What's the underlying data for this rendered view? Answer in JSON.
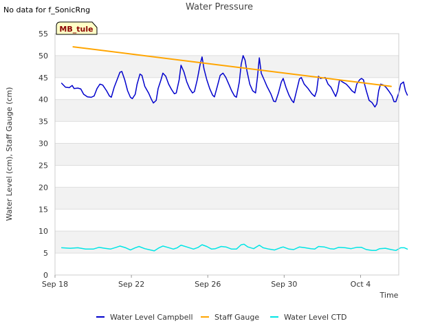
{
  "status_text": "No data for f_SonicRng",
  "site_label": "MB_tule",
  "chart_data": {
    "type": "line",
    "title": "Water Pressure",
    "xlabel": "Time",
    "ylabel": "Water Level (cm), Staff Gauge (cm)",
    "x_range": [
      "2023-09-18",
      "2023-10-06"
    ],
    "ylim": [
      0,
      55
    ],
    "y_ticks": [
      0,
      5,
      10,
      15,
      20,
      25,
      30,
      35,
      40,
      45,
      50,
      55
    ],
    "x_ticks": [
      {
        "label": "Sep 18",
        "day": 0
      },
      {
        "label": "Sep 22",
        "day": 4
      },
      {
        "label": "Sep 26",
        "day": 8
      },
      {
        "label": "Sep 30",
        "day": 12
      },
      {
        "label": "Oct 4",
        "day": 16
      }
    ],
    "grid": "horizontal alternating bands",
    "legend_position": "bottom",
    "series": [
      {
        "name": "Water Level Campbell",
        "color": "#0000cc",
        "points": [
          [
            0.35,
            43.7
          ],
          [
            0.55,
            42.8
          ],
          [
            0.75,
            42.7
          ],
          [
            0.9,
            43.2
          ],
          [
            1.0,
            42.5
          ],
          [
            1.2,
            42.6
          ],
          [
            1.35,
            42.4
          ],
          [
            1.5,
            41.2
          ],
          [
            1.7,
            40.6
          ],
          [
            1.9,
            40.5
          ],
          [
            2.05,
            40.8
          ],
          [
            2.2,
            42.5
          ],
          [
            2.35,
            43.5
          ],
          [
            2.5,
            43.3
          ],
          [
            2.7,
            42.0
          ],
          [
            2.85,
            40.8
          ],
          [
            2.95,
            40.5
          ],
          [
            3.1,
            42.8
          ],
          [
            3.25,
            44.5
          ],
          [
            3.4,
            46.2
          ],
          [
            3.5,
            46.4
          ],
          [
            3.65,
            44.5
          ],
          [
            3.8,
            42.0
          ],
          [
            3.95,
            40.5
          ],
          [
            4.05,
            40.2
          ],
          [
            4.2,
            41.2
          ],
          [
            4.3,
            43.5
          ],
          [
            4.45,
            45.8
          ],
          [
            4.55,
            45.5
          ],
          [
            4.7,
            43.0
          ],
          [
            4.9,
            41.5
          ],
          [
            5.05,
            40.0
          ],
          [
            5.15,
            39.2
          ],
          [
            5.3,
            39.8
          ],
          [
            5.4,
            42.5
          ],
          [
            5.55,
            44.5
          ],
          [
            5.65,
            46.0
          ],
          [
            5.8,
            45.3
          ],
          [
            5.95,
            43.5
          ],
          [
            6.1,
            42.3
          ],
          [
            6.25,
            41.3
          ],
          [
            6.35,
            41.5
          ],
          [
            6.5,
            44.5
          ],
          [
            6.6,
            47.8
          ],
          [
            6.75,
            46.3
          ],
          [
            6.9,
            44.0
          ],
          [
            7.05,
            42.5
          ],
          [
            7.2,
            41.5
          ],
          [
            7.3,
            41.8
          ],
          [
            7.45,
            44.5
          ],
          [
            7.6,
            48.0
          ],
          [
            7.7,
            49.7
          ],
          [
            7.8,
            47.0
          ],
          [
            7.95,
            44.5
          ],
          [
            8.1,
            42.5
          ],
          [
            8.25,
            41.0
          ],
          [
            8.35,
            40.6
          ],
          [
            8.5,
            43.0
          ],
          [
            8.65,
            45.5
          ],
          [
            8.8,
            46.0
          ],
          [
            8.95,
            45.0
          ],
          [
            9.1,
            43.5
          ],
          [
            9.25,
            42.0
          ],
          [
            9.4,
            40.8
          ],
          [
            9.5,
            40.5
          ],
          [
            9.65,
            44.0
          ],
          [
            9.75,
            48.0
          ],
          [
            9.85,
            50.0
          ],
          [
            9.95,
            49.0
          ],
          [
            10.05,
            46.5
          ],
          [
            10.2,
            43.5
          ],
          [
            10.35,
            42.0
          ],
          [
            10.5,
            41.5
          ],
          [
            10.6,
            45.0
          ],
          [
            10.7,
            49.5
          ],
          [
            10.8,
            46.0
          ],
          [
            10.95,
            44.5
          ],
          [
            11.1,
            43.0
          ],
          [
            11.3,
            41.3
          ],
          [
            11.45,
            39.6
          ],
          [
            11.55,
            39.5
          ],
          [
            11.7,
            41.5
          ],
          [
            11.85,
            44.0
          ],
          [
            11.95,
            44.8
          ],
          [
            12.1,
            42.7
          ],
          [
            12.25,
            41.0
          ],
          [
            12.4,
            39.8
          ],
          [
            12.5,
            39.3
          ],
          [
            12.65,
            42.0
          ],
          [
            12.8,
            44.7
          ],
          [
            12.9,
            45.0
          ],
          [
            13.05,
            43.5
          ],
          [
            13.25,
            42.5
          ],
          [
            13.45,
            41.3
          ],
          [
            13.6,
            40.7
          ],
          [
            13.7,
            42.0
          ],
          [
            13.8,
            45.3
          ],
          [
            13.9,
            44.8
          ],
          [
            14.0,
            44.9
          ],
          [
            14.15,
            45.0
          ],
          [
            14.3,
            43.5
          ],
          [
            14.45,
            42.8
          ],
          [
            14.6,
            41.5
          ],
          [
            14.7,
            40.7
          ],
          [
            14.8,
            42.0
          ],
          [
            14.9,
            44.5
          ],
          [
            15.05,
            44.0
          ],
          [
            15.25,
            43.5
          ],
          [
            15.4,
            42.8
          ],
          [
            15.55,
            42.0
          ],
          [
            15.7,
            41.5
          ],
          [
            15.8,
            43.5
          ],
          [
            15.95,
            44.5
          ],
          [
            16.05,
            44.8
          ],
          [
            16.15,
            44.5
          ],
          [
            16.3,
            42.0
          ],
          [
            16.45,
            39.8
          ],
          [
            16.6,
            39.3
          ],
          [
            16.75,
            38.3
          ],
          [
            16.85,
            39.0
          ],
          [
            16.95,
            42.0
          ],
          [
            17.05,
            43.5
          ],
          [
            17.2,
            43.3
          ],
          [
            17.35,
            42.7
          ],
          [
            17.5,
            41.8
          ],
          [
            17.65,
            40.8
          ],
          [
            17.75,
            39.5
          ],
          [
            17.85,
            39.5
          ],
          [
            18.0,
            41.5
          ],
          [
            18.1,
            43.5
          ],
          [
            18.25,
            44.0
          ],
          [
            18.35,
            42.0
          ],
          [
            18.45,
            41.0
          ]
        ]
      },
      {
        "name": "Staff Gauge",
        "color": "#ffa500",
        "points": [
          [
            0.95,
            52.0
          ],
          [
            17.6,
            43.0
          ]
        ]
      },
      {
        "name": "Water Level CTD",
        "color": "#00e5e5",
        "points": [
          [
            0.35,
            6.2
          ],
          [
            0.8,
            6.1
          ],
          [
            1.2,
            6.2
          ],
          [
            1.6,
            5.9
          ],
          [
            2.0,
            5.9
          ],
          [
            2.3,
            6.3
          ],
          [
            2.6,
            6.1
          ],
          [
            2.9,
            5.9
          ],
          [
            3.2,
            6.3
          ],
          [
            3.4,
            6.6
          ],
          [
            3.7,
            6.2
          ],
          [
            3.95,
            5.7
          ],
          [
            4.2,
            6.2
          ],
          [
            4.4,
            6.5
          ],
          [
            4.7,
            6.0
          ],
          [
            5.0,
            5.7
          ],
          [
            5.2,
            5.5
          ],
          [
            5.45,
            6.2
          ],
          [
            5.65,
            6.6
          ],
          [
            5.9,
            6.3
          ],
          [
            6.2,
            5.9
          ],
          [
            6.4,
            6.2
          ],
          [
            6.6,
            6.8
          ],
          [
            6.9,
            6.4
          ],
          [
            7.25,
            5.9
          ],
          [
            7.5,
            6.3
          ],
          [
            7.7,
            6.9
          ],
          [
            7.95,
            6.5
          ],
          [
            8.2,
            5.9
          ],
          [
            8.4,
            6.0
          ],
          [
            8.7,
            6.5
          ],
          [
            8.95,
            6.4
          ],
          [
            9.25,
            5.9
          ],
          [
            9.5,
            5.9
          ],
          [
            9.75,
            6.9
          ],
          [
            9.9,
            7.0
          ],
          [
            10.1,
            6.4
          ],
          [
            10.4,
            6.0
          ],
          [
            10.7,
            6.8
          ],
          [
            10.9,
            6.2
          ],
          [
            11.2,
            5.9
          ],
          [
            11.5,
            5.7
          ],
          [
            11.8,
            6.2
          ],
          [
            11.95,
            6.4
          ],
          [
            12.25,
            5.9
          ],
          [
            12.5,
            5.8
          ],
          [
            12.8,
            6.4
          ],
          [
            13.1,
            6.2
          ],
          [
            13.4,
            6.0
          ],
          [
            13.6,
            5.9
          ],
          [
            13.8,
            6.5
          ],
          [
            14.1,
            6.4
          ],
          [
            14.4,
            6.0
          ],
          [
            14.6,
            5.9
          ],
          [
            14.85,
            6.3
          ],
          [
            15.2,
            6.2
          ],
          [
            15.5,
            6.0
          ],
          [
            15.8,
            6.3
          ],
          [
            16.05,
            6.3
          ],
          [
            16.3,
            5.8
          ],
          [
            16.6,
            5.6
          ],
          [
            16.8,
            5.6
          ],
          [
            17.0,
            6.0
          ],
          [
            17.3,
            6.1
          ],
          [
            17.6,
            5.8
          ],
          [
            17.85,
            5.6
          ],
          [
            18.1,
            6.2
          ],
          [
            18.3,
            6.2
          ],
          [
            18.45,
            5.9
          ]
        ]
      }
    ]
  }
}
